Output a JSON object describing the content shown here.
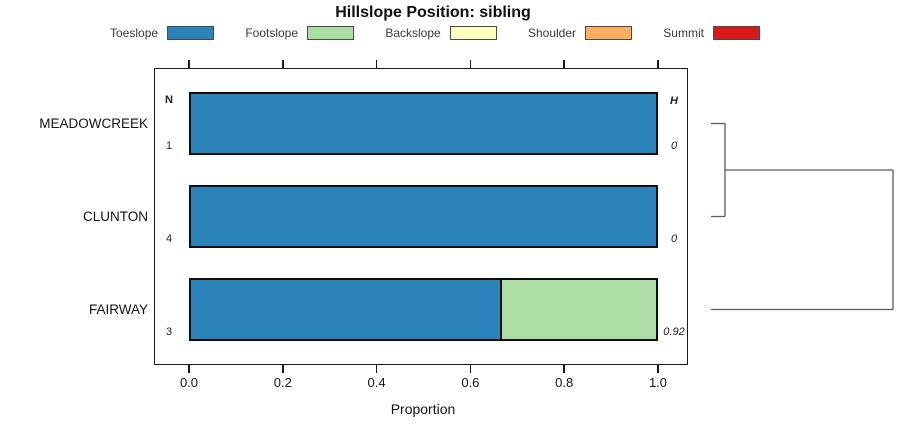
{
  "title": "Hillslope Position: sibling",
  "chart_data": {
    "type": "bar",
    "orientation": "horizontal",
    "stacked": true,
    "title": "Hillslope Position: sibling",
    "xlabel": "Proportion",
    "xlim": [
      0,
      1
    ],
    "x_ticks": [
      0,
      0.2,
      0.4,
      0.6,
      0.8,
      1.0
    ],
    "x_tick_labels": [
      "0.0",
      "0.2",
      "0.4",
      "0.6",
      "0.8",
      "1.0"
    ],
    "grid": false,
    "legend_position": "top",
    "categories": [
      "Toeslope",
      "Footslope",
      "Backslope",
      "Shoulder",
      "Summit"
    ],
    "colors": {
      "Toeslope": "#2B83BA",
      "Footslope": "#ABDDA4",
      "Backslope": "#FFFFBF",
      "Shoulder": "#FDAE61",
      "Summit": "#D7191C"
    },
    "column_headers": {
      "left": "N",
      "right": "H"
    },
    "rows": [
      {
        "name": "MEADOWCREEK",
        "N": "1",
        "H": "0",
        "segments": [
          {
            "category": "Toeslope",
            "value": 1.0
          }
        ]
      },
      {
        "name": "CLUNTON",
        "N": "4",
        "H": "0",
        "segments": [
          {
            "category": "Toeslope",
            "value": 1.0
          }
        ]
      },
      {
        "name": "FAIRWAY",
        "N": "3",
        "H": "0.92",
        "segments": [
          {
            "category": "Toeslope",
            "value": 0.667
          },
          {
            "category": "Footslope",
            "value": 0.333
          }
        ]
      }
    ],
    "dendrogram": {
      "max_height": 0.92,
      "merges": [
        {
          "a": "MEADOWCREEK",
          "b": "CLUNTON",
          "h": 0,
          "id": "c1"
        },
        {
          "a": "c1",
          "b": "FAIRWAY",
          "h": 0.92,
          "id": "c2"
        }
      ]
    }
  }
}
